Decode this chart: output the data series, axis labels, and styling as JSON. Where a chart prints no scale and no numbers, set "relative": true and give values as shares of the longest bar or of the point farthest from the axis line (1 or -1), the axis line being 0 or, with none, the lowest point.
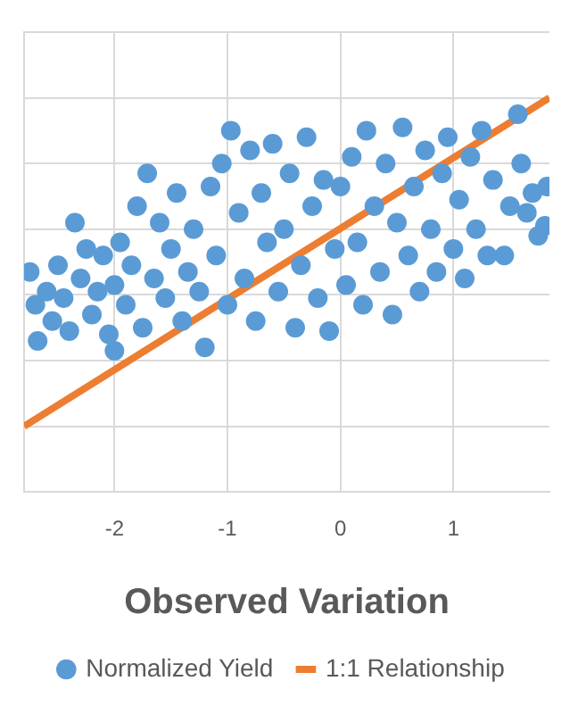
{
  "chart_data": {
    "type": "scatter",
    "xlabel": "Observed Variation",
    "xlim": [
      -2.8,
      1.85
    ],
    "xticks": [
      -2,
      -1,
      0,
      1
    ],
    "relative": true,
    "grid": true,
    "legend": "bottom",
    "marker": "circle",
    "series": [
      {
        "name": "Normalized Yield",
        "color": "#5b9bd5",
        "x": [
          -2.75,
          -2.7,
          -2.68,
          -2.6,
          -2.55,
          -2.5,
          -2.45,
          -2.4,
          -2.35,
          -2.3,
          -2.25,
          -2.2,
          -2.15,
          -2.1,
          -2.05,
          -2.0,
          -2.0,
          -1.95,
          -1.9,
          -1.85,
          -1.8,
          -1.75,
          -1.71,
          -1.65,
          -1.6,
          -1.55,
          -1.5,
          -1.45,
          -1.4,
          -1.35,
          -1.3,
          -1.25,
          -1.2,
          -1.15,
          -1.1,
          -1.05,
          -1.0,
          -0.97,
          -0.9,
          -0.85,
          -0.8,
          -0.75,
          -0.7,
          -0.65,
          -0.6,
          -0.55,
          -0.5,
          -0.45,
          -0.4,
          -0.35,
          -0.3,
          -0.25,
          -0.2,
          -0.15,
          -0.1,
          -0.05,
          0.0,
          0.05,
          0.1,
          0.15,
          0.2,
          0.23,
          0.3,
          0.35,
          0.4,
          0.46,
          0.5,
          0.55,
          0.6,
          0.65,
          0.7,
          0.75,
          0.8,
          0.85,
          0.9,
          0.95,
          1.0,
          1.05,
          1.1,
          1.15,
          1.2,
          1.25,
          1.3,
          1.35,
          1.45,
          1.5,
          1.57,
          1.6,
          1.65,
          1.7,
          1.75,
          1.81,
          1.83
        ],
        "values": [
          0.47,
          0.37,
          0.26,
          0.41,
          0.32,
          0.49,
          0.39,
          0.29,
          0.62,
          0.45,
          0.54,
          0.34,
          0.41,
          0.52,
          0.28,
          0.23,
          0.43,
          0.56,
          0.37,
          0.49,
          0.67,
          0.3,
          0.77,
          0.45,
          0.62,
          0.39,
          0.54,
          0.71,
          0.32,
          0.47,
          0.6,
          0.41,
          0.24,
          0.73,
          0.52,
          0.8,
          0.37,
          0.9,
          0.65,
          0.45,
          0.84,
          0.32,
          0.71,
          0.56,
          0.86,
          0.41,
          0.6,
          0.77,
          0.3,
          0.49,
          0.88,
          0.67,
          0.39,
          0.75,
          0.29,
          0.54,
          0.73,
          0.43,
          0.82,
          0.56,
          0.37,
          0.9,
          0.67,
          0.47,
          0.8,
          0.34,
          0.62,
          0.91,
          0.52,
          0.73,
          0.41,
          0.84,
          0.6,
          0.47,
          0.77,
          0.88,
          0.54,
          0.69,
          0.45,
          0.82,
          0.6,
          0.9,
          0.52,
          0.75,
          0.52,
          0.67,
          0.95,
          0.8,
          0.65,
          0.71,
          0.58,
          0.61,
          0.73
        ]
      },
      {
        "name": "1:1 Relationship",
        "color": "#ed7d31",
        "type": "line",
        "marker": "none",
        "x": [
          -2.8,
          1.85
        ],
        "values": [
          0,
          1
        ]
      }
    ]
  }
}
